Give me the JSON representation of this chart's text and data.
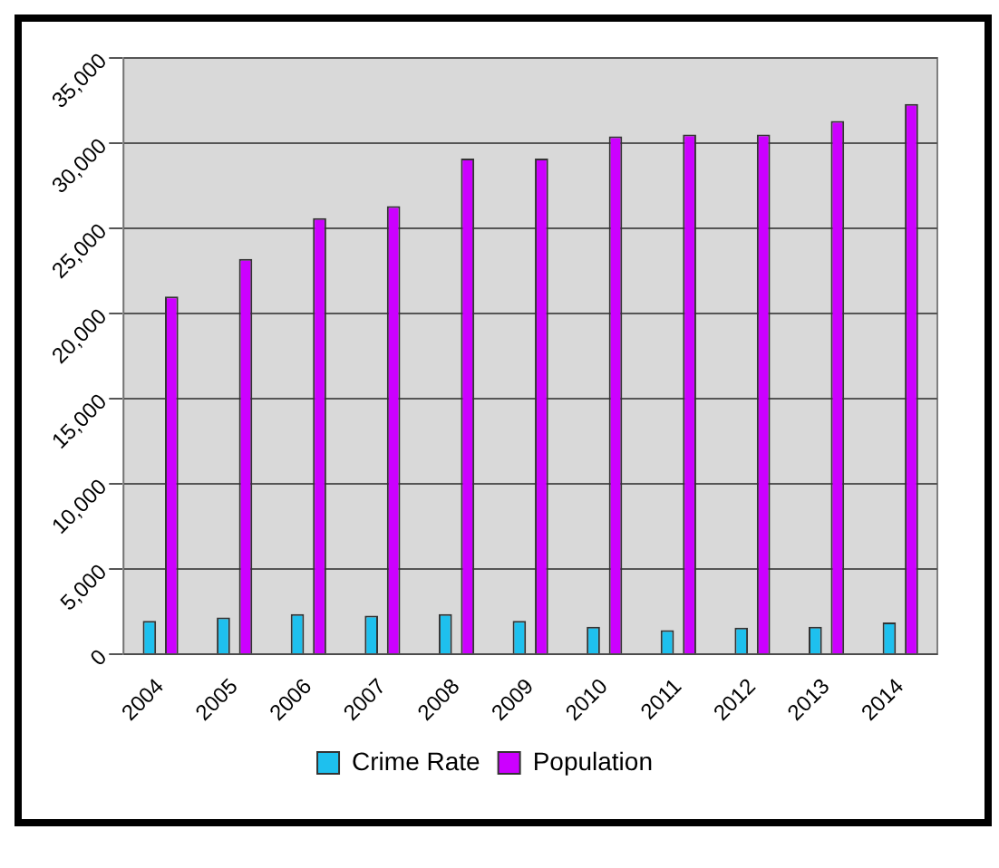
{
  "chart_data": {
    "type": "bar",
    "categories": [
      "2004",
      "2005",
      "2006",
      "2007",
      "2008",
      "2009",
      "2010",
      "2011",
      "2012",
      "2013",
      "2014"
    ],
    "series": [
      {
        "name": "Crime Rate",
        "color": "#1ec0ee",
        "values": [
          1950,
          2150,
          2350,
          2250,
          2350,
          1950,
          1600,
          1400,
          1550,
          1600,
          1850
        ]
      },
      {
        "name": "Population",
        "color": "#cc00ff",
        "values": [
          21000,
          23200,
          25600,
          26300,
          29100,
          29100,
          30400,
          30500,
          30500,
          31300,
          32300
        ]
      }
    ],
    "ylim": [
      0,
      35000
    ],
    "yticks": [
      {
        "value": 0,
        "label": "0"
      },
      {
        "value": 5000,
        "label": "5,000"
      },
      {
        "value": 10000,
        "label": "10,000"
      },
      {
        "value": 15000,
        "label": "15,000"
      },
      {
        "value": 20000,
        "label": "20,000"
      },
      {
        "value": 25000,
        "label": "25,000"
      },
      {
        "value": 30000,
        "label": "30,000"
      },
      {
        "value": 35000,
        "label": "35,000"
      }
    ],
    "grid": "y",
    "legend": "bottom"
  }
}
